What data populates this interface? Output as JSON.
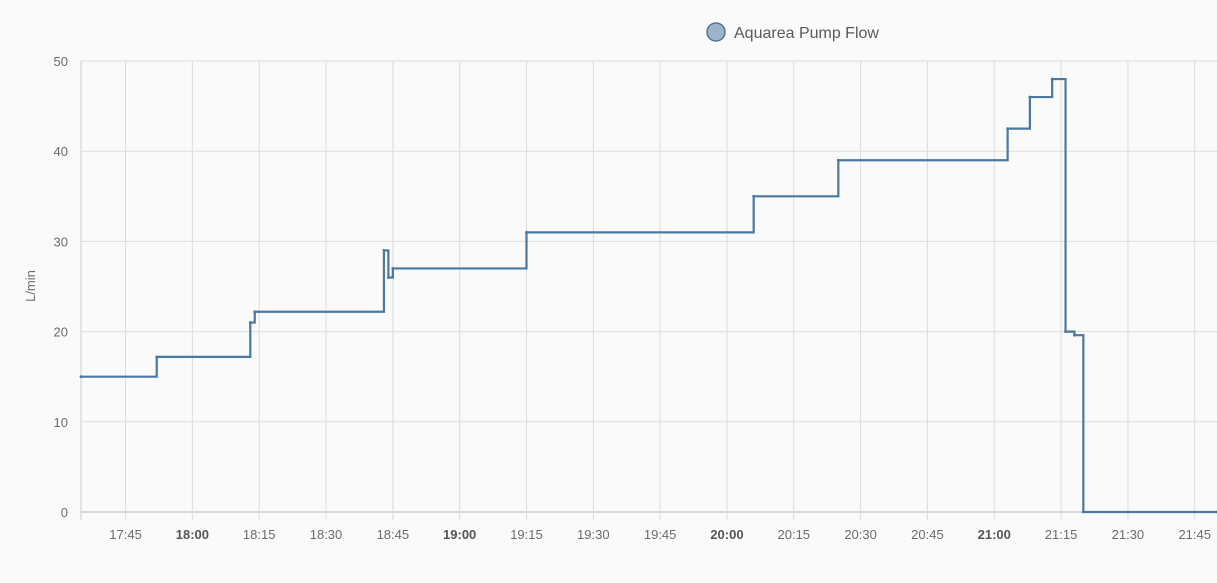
{
  "legend": {
    "series_name": "Aquarea Pump Flow",
    "color": "#4a78a0",
    "fill": "#9db3cc"
  },
  "chart_data": {
    "type": "line",
    "step": true,
    "xlabel": "",
    "ylabel": "L/min",
    "ylim": [
      0,
      50
    ],
    "xlim": [
      "17:35",
      "21:50"
    ],
    "grid": true,
    "legend_position": "top-center",
    "y_ticks": [
      "0",
      "10",
      "20",
      "30",
      "40",
      "50"
    ],
    "x_ticks": [
      {
        "time": "17:45",
        "label": "17:45",
        "bold": false
      },
      {
        "time": "18:00",
        "label": "18:00",
        "bold": true
      },
      {
        "time": "18:15",
        "label": "18:15",
        "bold": false
      },
      {
        "time": "18:30",
        "label": "18:30",
        "bold": false
      },
      {
        "time": "18:45",
        "label": "18:45",
        "bold": false
      },
      {
        "time": "19:00",
        "label": "19:00",
        "bold": true
      },
      {
        "time": "19:15",
        "label": "19:15",
        "bold": false
      },
      {
        "time": "19:30",
        "label": "19:30",
        "bold": false
      },
      {
        "time": "19:45",
        "label": "19:45",
        "bold": false
      },
      {
        "time": "20:00",
        "label": "20:00",
        "bold": true
      },
      {
        "time": "20:15",
        "label": "20:15",
        "bold": false
      },
      {
        "time": "20:30",
        "label": "20:30",
        "bold": false
      },
      {
        "time": "20:45",
        "label": "20:45",
        "bold": false
      },
      {
        "time": "21:00",
        "label": "21:00",
        "bold": true
      },
      {
        "time": "21:15",
        "label": "21:15",
        "bold": false
      },
      {
        "time": "21:30",
        "label": "21:30",
        "bold": false
      },
      {
        "time": "21:45",
        "label": "21:45",
        "bold": false
      }
    ],
    "series": [
      {
        "name": "Aquarea Pump Flow",
        "color": "#4a78a0",
        "points": [
          {
            "time": "17:35",
            "value": 15.0
          },
          {
            "time": "17:52",
            "value": 17.2
          },
          {
            "time": "18:13",
            "value": 21.0
          },
          {
            "time": "18:14",
            "value": 22.2
          },
          {
            "time": "18:43",
            "value": 29.0
          },
          {
            "time": "18:44",
            "value": 26.0
          },
          {
            "time": "18:45",
            "value": 27.0
          },
          {
            "time": "19:15",
            "value": 31.0
          },
          {
            "time": "20:06",
            "value": 35.0
          },
          {
            "time": "20:25",
            "value": 39.0
          },
          {
            "time": "21:03",
            "value": 42.5
          },
          {
            "time": "21:08",
            "value": 46.0
          },
          {
            "time": "21:13",
            "value": 48.0
          },
          {
            "time": "21:16",
            "value": 20.0
          },
          {
            "time": "21:18",
            "value": 19.6
          },
          {
            "time": "21:20",
            "value": 0.0
          },
          {
            "time": "21:50",
            "value": 0.0
          }
        ]
      }
    ]
  }
}
